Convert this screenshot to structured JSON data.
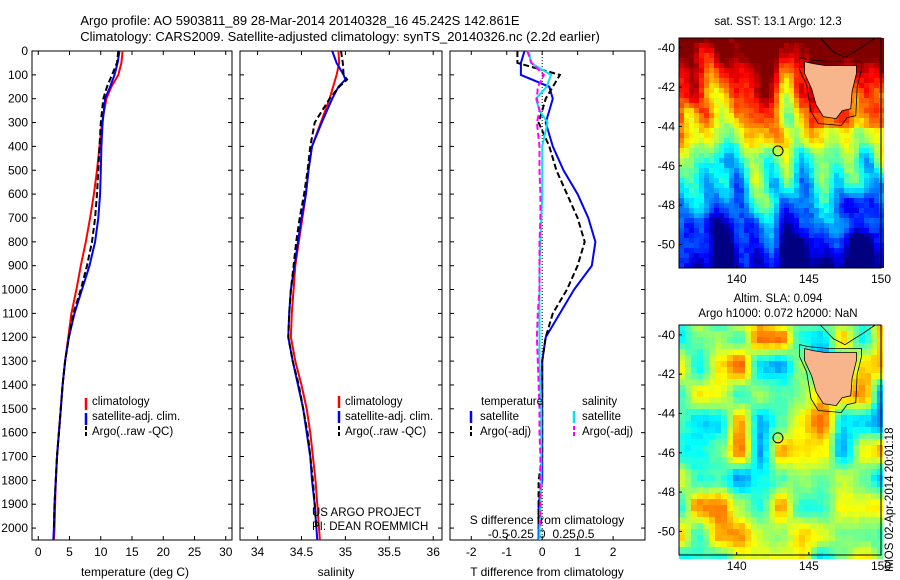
{
  "header": {
    "title_line1": "Argo profile: AO 5903811_89 28-Mar-2014 20140328_16 45.242S 142.861E",
    "title_line2": "Climatology: CARS2009. Satellite-adjusted climatology: synTS_20140326.nc (2.2d earlier)"
  },
  "colors": {
    "climatology": "#ff0000",
    "satellite": "#0000ff",
    "argo": "#000000",
    "sal_satellite": "#00e5ee",
    "sal_argo": "#ff00ff",
    "land": "#f8b58c"
  },
  "depth_ticks": [
    "0",
    "100",
    "200",
    "300",
    "400",
    "500",
    "600",
    "700",
    "800",
    "900",
    "1000",
    "1100",
    "1200",
    "1300",
    "1400",
    "1500",
    "1600",
    "1700",
    "1800",
    "1900",
    "2000"
  ],
  "panels": {
    "temperature": {
      "xlabel": "temperature (deg C)",
      "xticks": [
        "0",
        "5",
        "10",
        "15",
        "20",
        "25",
        "30"
      ],
      "legend": [
        "climatology",
        "satellite-adj. clim.",
        "Argo(..raw -QC)"
      ]
    },
    "salinity": {
      "xlabel": "salinity",
      "xticks": [
        "34",
        "34.5",
        "35",
        "35.5",
        "36"
      ],
      "legend": [
        "climatology",
        "satellite-adj. clim.",
        "Argo(..raw -QC)"
      ],
      "credit_line1": "US ARGO PROJECT",
      "credit_line2": "PI: DEAN ROEMMICH"
    },
    "difference": {
      "xlabel": "T difference from climatology",
      "top_label": "S difference from climatology",
      "xticks_T": [
        "-2",
        "-1",
        "0",
        "1",
        "2"
      ],
      "xticks_S": [
        "-0.5",
        "-0.25",
        "0",
        "0.25",
        "0.5"
      ],
      "legend_left_title": "temperature",
      "legend_right_title": "salinity",
      "legend_left": [
        "satellite",
        "Argo(-adj)"
      ],
      "legend_right": [
        "satellite",
        "Argo(-adj)"
      ]
    }
  },
  "maps": {
    "sst": {
      "title": "sat. SST: 13.1  Argo: 12.3",
      "yticks": [
        "-40",
        "-42",
        "-44",
        "-46",
        "-48",
        "-50"
      ],
      "xticks": [
        "140",
        "145",
        "150"
      ]
    },
    "sla": {
      "title_line1": "Altim. SLA: 0.094",
      "title_line2": "Argo h1000: 0.072 h2000: NaN",
      "yticks": [
        "-40",
        "-42",
        "-44",
        "-46",
        "-48",
        "-50"
      ],
      "xticks": [
        "140",
        "145",
        "150"
      ],
      "watermark": "IMOS 02-Apr-2014 20:01:18"
    }
  },
  "chart_data": [
    {
      "type": "line",
      "title": "",
      "xlabel": "temperature (deg C)",
      "ylabel": "",
      "xlim": [
        -1,
        31
      ],
      "ylim": [
        2050,
        0
      ],
      "series": [
        {
          "name": "climatology",
          "depth": [
            0,
            50,
            100,
            150,
            200,
            300,
            400,
            500,
            600,
            700,
            800,
            900,
            1000,
            1100,
            1200,
            1300,
            1400,
            1500,
            1600,
            1700,
            1800,
            1900,
            2000,
            2050
          ],
          "values": [
            13.5,
            13.3,
            12.8,
            11.7,
            10.9,
            10.2,
            9.8,
            9.4,
            8.9,
            8.3,
            7.6,
            6.8,
            6.1,
            5.3,
            4.8,
            4.3,
            3.9,
            3.6,
            3.3,
            3.0,
            2.8,
            2.7,
            2.6,
            2.5
          ]
        },
        {
          "name": "satellite-adj. clim.",
          "depth": [
            0,
            50,
            100,
            150,
            200,
            300,
            400,
            500,
            600,
            700,
            800,
            900,
            1000,
            1100,
            1200,
            1300,
            1400,
            1500,
            1600,
            1700,
            1800,
            1900,
            2000,
            2050
          ],
          "values": [
            13.0,
            12.7,
            12.2,
            11.5,
            10.7,
            10.3,
            10.1,
            10.0,
            9.9,
            9.6,
            9.1,
            8.2,
            7.0,
            5.8,
            4.9,
            4.3,
            3.9,
            3.6,
            3.3,
            3.0,
            2.8,
            2.6,
            2.5,
            2.4
          ]
        },
        {
          "name": "Argo(..raw -QC)",
          "depth": [
            0,
            50,
            100,
            150,
            200,
            300,
            400,
            500,
            600,
            700,
            800,
            900,
            1000,
            1100,
            1200,
            1300,
            1400,
            1500,
            1600,
            1700,
            1800,
            1900,
            2000
          ],
          "values": [
            12.8,
            12.6,
            11.8,
            11.0,
            10.4,
            10.0,
            9.8,
            9.6,
            9.4,
            9.1,
            8.6,
            7.8,
            6.8,
            5.6,
            4.9,
            4.3,
            3.9,
            3.6,
            3.3,
            3.0,
            2.8,
            2.6,
            2.5
          ]
        }
      ]
    },
    {
      "type": "line",
      "title": "",
      "xlabel": "salinity",
      "ylabel": "",
      "xlim": [
        33.8,
        36.1
      ],
      "ylim": [
        2050,
        0
      ],
      "series": [
        {
          "name": "climatology",
          "depth": [
            0,
            50,
            100,
            150,
            200,
            300,
            400,
            500,
            600,
            700,
            800,
            900,
            1000,
            1100,
            1200,
            1300,
            1400,
            1500,
            1600,
            1700,
            1800,
            1900,
            2000,
            2050
          ],
          "values": [
            34.92,
            34.93,
            34.9,
            34.86,
            34.82,
            34.72,
            34.62,
            34.58,
            34.55,
            34.51,
            34.47,
            34.43,
            34.41,
            34.39,
            34.38,
            34.43,
            34.5,
            34.56,
            34.6,
            34.63,
            34.66,
            34.68,
            34.7,
            34.71
          ]
        },
        {
          "name": "satellite-adj. clim.",
          "depth": [
            0,
            50,
            100,
            120,
            150,
            200,
            300,
            400,
            500,
            600,
            700,
            800,
            900,
            1000,
            1100,
            1200,
            1300,
            1400,
            1500,
            1600,
            1700,
            1800,
            1900,
            2000,
            2050
          ],
          "values": [
            34.85,
            34.9,
            34.98,
            35.0,
            34.92,
            34.85,
            34.73,
            34.62,
            34.58,
            34.55,
            34.5,
            34.46,
            34.42,
            34.38,
            34.36,
            34.35,
            34.4,
            34.46,
            34.52,
            34.56,
            34.6,
            34.62,
            34.65,
            34.67,
            34.68
          ]
        },
        {
          "name": "Argo(..raw -QC)",
          "depth": [
            0,
            50,
            100,
            120,
            150,
            200,
            300,
            400,
            500,
            600,
            700,
            800,
            900,
            1000,
            1100,
            1200,
            1300,
            1400,
            1500,
            1600,
            1700,
            1800,
            1900,
            2000
          ],
          "values": [
            34.95,
            34.97,
            34.98,
            35.02,
            34.93,
            34.82,
            34.65,
            34.6,
            34.57,
            34.53,
            34.48,
            34.44,
            34.41,
            34.38,
            34.36,
            34.35,
            34.4,
            34.47,
            34.52,
            34.57,
            34.6,
            34.63,
            34.65,
            34.67
          ]
        }
      ]
    },
    {
      "type": "line",
      "title": "",
      "xlabel": "T difference from climatology",
      "ylabel": "",
      "xlim": [
        -2.6,
        2.9
      ],
      "ylim": [
        2050,
        0
      ],
      "series": [
        {
          "name": "temperature satellite",
          "depth": [
            0,
            50,
            100,
            150,
            200,
            250,
            300,
            400,
            500,
            600,
            700,
            800,
            900,
            1000,
            1100,
            1200,
            1300,
            1400,
            1500,
            1600,
            1700,
            1800,
            1900,
            2000,
            2050
          ],
          "values": [
            -0.5,
            -0.6,
            -0.6,
            0.2,
            0.3,
            0.2,
            0.1,
            0.3,
            0.6,
            1.0,
            1.3,
            1.5,
            1.4,
            0.9,
            0.5,
            0.1,
            0.0,
            0.0,
            0.0,
            0.0,
            0.0,
            0.0,
            -0.1,
            -0.1,
            -0.1
          ]
        },
        {
          "name": "temperature Argo(-adj)",
          "depth": [
            0,
            50,
            100,
            150,
            200,
            250,
            300,
            400,
            500,
            600,
            700,
            800,
            900,
            1000,
            1100,
            1200,
            1300,
            1400,
            1500,
            1600,
            1700,
            1800,
            1900,
            2000
          ],
          "values": [
            -0.7,
            -0.7,
            0.5,
            0.3,
            0.1,
            0.0,
            -0.1,
            0.2,
            0.4,
            0.7,
            1.0,
            1.2,
            1.0,
            0.7,
            0.3,
            0.1,
            0.0,
            0.0,
            0.0,
            0.0,
            0.0,
            -0.1,
            -0.1,
            -0.1
          ]
        },
        {
          "name": "salinity satellite",
          "depth": [
            0,
            50,
            100,
            150,
            200,
            250,
            300,
            400,
            500,
            600,
            700,
            800,
            900,
            1000,
            1100,
            1200,
            1300,
            1400,
            1500,
            1600,
            1700,
            1800,
            1900,
            2000,
            2050
          ],
          "values": [
            -0.15,
            -0.13,
            0.1,
            0.05,
            -0.07,
            -0.03,
            0.06,
            0.0,
            0.0,
            0.0,
            -0.01,
            -0.02,
            -0.03,
            -0.03,
            -0.03,
            -0.03,
            -0.03,
            -0.02,
            -0.01,
            -0.01,
            -0.01,
            -0.01,
            -0.02,
            -0.03,
            -0.03
          ]
        },
        {
          "name": "salinity Argo(-adj)",
          "depth": [
            0,
            50,
            100,
            150,
            200,
            250,
            300,
            400,
            500,
            600,
            700,
            800,
            900,
            1000,
            1100,
            1200,
            1300,
            1400,
            1500,
            1600,
            1700,
            1800,
            1900,
            2000
          ],
          "values": [
            -0.17,
            -0.12,
            0.02,
            -0.05,
            -0.06,
            -0.03,
            -0.06,
            -0.03,
            -0.03,
            -0.02,
            -0.02,
            -0.03,
            -0.03,
            -0.03,
            -0.05,
            -0.06,
            -0.05,
            -0.04,
            -0.03,
            -0.03,
            -0.02,
            -0.02,
            -0.02,
            -0.02
          ]
        }
      ]
    }
  ]
}
